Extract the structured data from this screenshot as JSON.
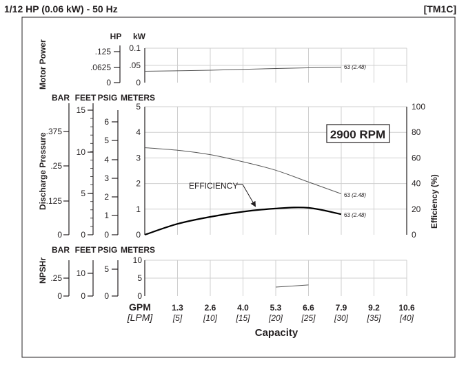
{
  "header": {
    "title": "1/12 HP (0.06 kW) - 50 Hz",
    "code": "[TM1C]"
  },
  "chart_data": {
    "type": "line",
    "rpm_label": "2900 RPM",
    "x_axis": {
      "label": "Capacity",
      "unit_primary": "GPM",
      "unit_secondary": "[LPM]",
      "gpm_ticks": [
        "1.3",
        "2.6",
        "4.0",
        "5.3",
        "6.6",
        "7.9",
        "9.2",
        "10.6"
      ],
      "lpm_ticks": [
        "[5]",
        "[10]",
        "[15]",
        "[20]",
        "[25]",
        "[30]",
        "[35]",
        "[40]"
      ],
      "range_lpm": [
        0,
        40
      ]
    },
    "motor_power": {
      "title": "Motor Power",
      "units": [
        "HP",
        "kW"
      ],
      "hp_ticks": [
        ".125",
        ".0625",
        "0"
      ],
      "kw_ticks": [
        "0.1",
        ".05",
        "0"
      ],
      "kw_range": [
        0,
        0.1
      ],
      "series": {
        "lpm": [
          0,
          10,
          20,
          30
        ],
        "kw": [
          0.033,
          0.036,
          0.041,
          0.045
        ]
      },
      "end_label": "63",
      "end_label_note": "(2.48)"
    },
    "discharge": {
      "title": "Discharge Pressure",
      "units": [
        "BAR",
        "FEET",
        "PSIG",
        "METERS"
      ],
      "bar_ticks": [
        ".375",
        ".25",
        ".125",
        "0"
      ],
      "feet_ticks": [
        "15",
        "10",
        "5",
        "0"
      ],
      "psig_ticks": [
        "6",
        "5",
        "4",
        "3",
        "2",
        "1",
        "0"
      ],
      "meters_ticks": [
        "5",
        "4",
        "3",
        "2",
        "1",
        "0"
      ],
      "meters_range": [
        0,
        5
      ],
      "head_series": {
        "lpm": [
          0,
          5,
          10,
          15,
          20,
          25,
          30
        ],
        "meters": [
          3.4,
          3.3,
          3.13,
          2.85,
          2.52,
          2.06,
          1.6
        ]
      },
      "head_end_label": "63",
      "head_end_note": "(2.48)",
      "efficiency_label": "EFFICIENCY",
      "efficiency_axis_title": "Efficiency (%)",
      "efficiency_ticks": [
        "100",
        "80",
        "60",
        "40",
        "20",
        "0"
      ],
      "efficiency_range": [
        0,
        100
      ],
      "efficiency_series": {
        "lpm": [
          0,
          5,
          10,
          15,
          20,
          25,
          30
        ],
        "percent": [
          0,
          8.5,
          14,
          18,
          20.5,
          21,
          16
        ]
      },
      "eff_end_label": "63",
      "eff_end_note": "(2.48)"
    },
    "npshr": {
      "title": "NPSHr",
      "units": [
        "BAR",
        "FEET",
        "PSIG",
        "METERS"
      ],
      "bar_ticks": [
        ".25",
        "0"
      ],
      "feet_ticks": [
        "10",
        "0"
      ],
      "psig_ticks": [
        "5",
        "0"
      ],
      "meters_ticks": [
        "10",
        "5",
        "0"
      ],
      "meters_range": [
        0,
        10
      ],
      "series": {
        "lpm": [
          20,
          25
        ],
        "meters": [
          2.5,
          3.1
        ]
      }
    },
    "grid": true
  }
}
